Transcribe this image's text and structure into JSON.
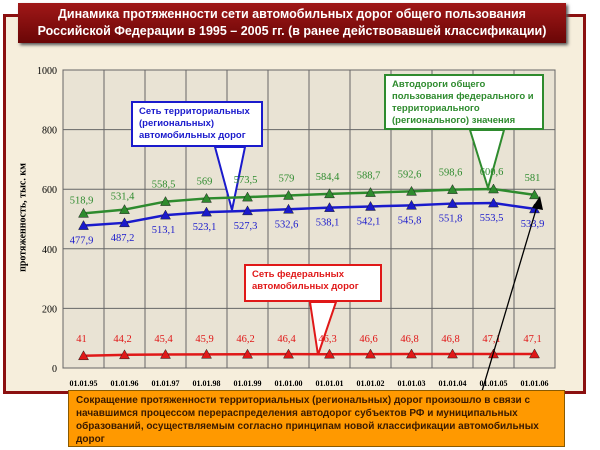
{
  "title_line1": "Динамика протяженности сети автомобильных дорог общего пользования",
  "title_line2": "Российской Федерации  в 1995 – 2005 гг. (в ранее действовавшей классификации)",
  "callouts": {
    "territorial": "Сеть территориальных (региональных) автомобильных дорог",
    "total": "Автодороги общего пользования федерального и территориального (регионального) значения",
    "federal": "Сеть федеральных автомобильных дорог"
  },
  "note": "Сокращение протяженности территориальных (региональных) дорог произошло в связи с начавшимся процессом перераспределения автодорог субъектов РФ и муниципальных образований, осуществляемым согласно принципам новой классификации автомобильных дорог",
  "colors": {
    "total": "#2e8b2e",
    "territorial": "#1a1acc",
    "federal": "#e01818",
    "frame": "#8b1010",
    "note": "#ff9900"
  },
  "chart_data": {
    "type": "line",
    "ylabel": "протяженность, тыс. км",
    "ylim": [
      0,
      1000
    ],
    "yticks": [
      "0",
      "200",
      "400",
      "600",
      "800",
      "1000"
    ],
    "grid": true,
    "categories": [
      "01.01.95",
      "01.01.96",
      "01.01.97",
      "01.01.98",
      "01.01.99",
      "01.01.00",
      "01.01.01",
      "01.01.02",
      "01.01.03",
      "01.01.04",
      "01.01.05",
      "01.01.06"
    ],
    "series": [
      {
        "key": "total",
        "values": [
          518.9,
          531.4,
          558.5,
          569,
          573.5,
          579,
          584.4,
          588.7,
          592.6,
          598.6,
          600.6,
          581
        ],
        "labels": [
          "518,9",
          "531,4",
          "558,5",
          "569",
          "573,5",
          "579",
          "584,4",
          "588,7",
          "592,6",
          "598,6",
          "600,6",
          "581"
        ]
      },
      {
        "key": "territorial",
        "values": [
          477.9,
          487.2,
          513.1,
          523.1,
          527.3,
          532.6,
          538.1,
          542.1,
          545.8,
          551.8,
          553.5,
          533.9
        ],
        "labels": [
          "477,9",
          "487,2",
          "513,1",
          "523,1",
          "527,3",
          "532,6",
          "538,1",
          "542,1",
          "545,8",
          "551,8",
          "553,5",
          "533,9"
        ]
      },
      {
        "key": "federal",
        "values": [
          41,
          44.2,
          45.4,
          45.9,
          46.2,
          46.4,
          46.3,
          46.6,
          46.8,
          46.8,
          47.1,
          47.1
        ],
        "labels": [
          "41",
          "44,2",
          "45,4",
          "45,9",
          "46,2",
          "46,4",
          "46,3",
          "46,6",
          "46,8",
          "46,8",
          "47,1",
          "47,1"
        ]
      }
    ]
  }
}
